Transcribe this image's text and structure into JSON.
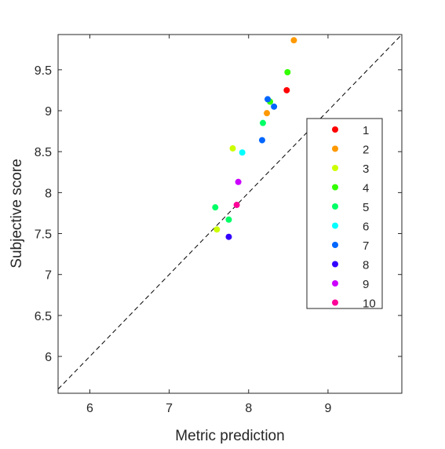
{
  "chart_data": {
    "type": "scatter",
    "xlabel": "Metric prediction",
    "ylabel": "Subjective score",
    "xlim": [
      5.6,
      9.93
    ],
    "ylim": [
      5.55,
      9.93
    ],
    "xticks": [
      "6",
      "7",
      "8",
      "9"
    ],
    "yticks": [
      "6",
      "6.5",
      "7",
      "7.5",
      "8",
      "8.5",
      "9",
      "9.5"
    ],
    "xtick_values": [
      6,
      7,
      8,
      9
    ],
    "ytick_values": [
      6,
      6.5,
      7,
      7.5,
      8,
      8.5,
      9,
      9.5
    ],
    "reference_line": "y = x (dashed)",
    "grid": false,
    "legend_position": "right",
    "series": [
      {
        "name": "1",
        "color": "#ff0000",
        "points": [
          [
            8.48,
            9.25
          ]
        ]
      },
      {
        "name": "2",
        "color": "#ff9900",
        "points": [
          [
            8.57,
            9.86
          ],
          [
            8.23,
            8.97
          ]
        ]
      },
      {
        "name": "3",
        "color": "#ccff00",
        "points": [
          [
            7.8,
            8.54
          ],
          [
            7.6,
            7.55
          ]
        ]
      },
      {
        "name": "4",
        "color": "#33ff00",
        "points": [
          [
            8.49,
            9.47
          ],
          [
            8.27,
            9.11
          ]
        ]
      },
      {
        "name": "5",
        "color": "#00ff66",
        "points": [
          [
            8.18,
            8.85
          ],
          [
            7.58,
            7.82
          ],
          [
            7.75,
            7.67
          ]
        ]
      },
      {
        "name": "6",
        "color": "#00ffff",
        "points": [
          [
            7.92,
            8.49
          ]
        ]
      },
      {
        "name": "7",
        "color": "#0066ff",
        "points": [
          [
            8.24,
            9.14
          ],
          [
            8.32,
            9.05
          ],
          [
            8.17,
            8.64
          ]
        ]
      },
      {
        "name": "8",
        "color": "#3300ff",
        "points": [
          [
            7.75,
            7.46
          ]
        ]
      },
      {
        "name": "9",
        "color": "#cc00ff",
        "points": [
          [
            7.87,
            8.13
          ]
        ]
      },
      {
        "name": "10",
        "color": "#ff0099",
        "points": [
          [
            7.85,
            7.85
          ]
        ]
      }
    ]
  }
}
